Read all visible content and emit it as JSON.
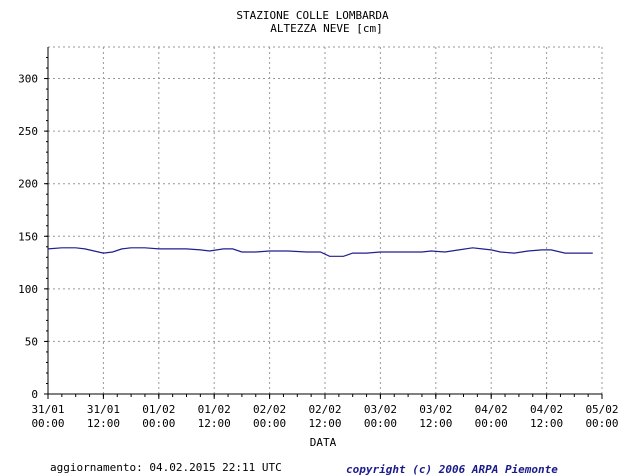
{
  "chart_data": {
    "type": "line",
    "title": "STAZIONE COLLE LOMBARDA",
    "subtitle": "ALTEZZA NEVE [cm]",
    "xlabel": "DATA",
    "ylabel": "",
    "ylim": [
      0,
      330
    ],
    "y_ticks": [
      0,
      50,
      100,
      150,
      200,
      250,
      300
    ],
    "x_ticks": [
      {
        "date": "31/01",
        "time": "00:00"
      },
      {
        "date": "31/01",
        "time": "12:00"
      },
      {
        "date": "01/02",
        "time": "00:00"
      },
      {
        "date": "01/02",
        "time": "12:00"
      },
      {
        "date": "02/02",
        "time": "00:00"
      },
      {
        "date": "02/02",
        "time": "12:00"
      },
      {
        "date": "03/02",
        "time": "00:00"
      },
      {
        "date": "03/02",
        "time": "12:00"
      },
      {
        "date": "04/02",
        "time": "00:00"
      },
      {
        "date": "04/02",
        "time": "12:00"
      },
      {
        "date": "05/02",
        "time": "00:00"
      }
    ],
    "grid": true,
    "line_color": "#1f1f8f",
    "series": [
      {
        "x": [
          "31/01 00:00",
          "31/01 03:00",
          "31/01 06:00",
          "31/01 08:00",
          "31/01 10:00",
          "31/01 12:00",
          "31/01 14:00",
          "31/01 16:00",
          "31/01 18:00",
          "31/01 21:00",
          "01/02 00:00",
          "01/02 03:00",
          "01/02 06:00",
          "01/02 09:00",
          "01/02 11:00",
          "01/02 14:00",
          "01/02 16:00",
          "01/02 18:00",
          "01/02 21:00",
          "02/02 00:00",
          "02/02 04:00",
          "02/02 08:00",
          "02/02 11:00",
          "02/02 13:00",
          "02/02 16:00",
          "02/02 18:00",
          "02/02 21:00",
          "03/02 00:00",
          "03/02 03:00",
          "03/02 06:00",
          "03/02 09:00",
          "03/02 11:00",
          "03/02 14:00",
          "03/02 17:00",
          "03/02 20:00",
          "03/02 22:00",
          "04/02 00:00",
          "04/02 02:00",
          "04/02 05:00",
          "04/02 08:00",
          "04/02 11:00",
          "04/02 13:00",
          "04/02 16:00",
          "04/02 19:00",
          "04/02 22:00"
        ],
        "values": [
          138,
          139,
          139,
          138,
          136,
          134,
          135,
          138,
          139,
          139,
          138,
          138,
          138,
          137,
          136,
          138,
          138,
          135,
          135,
          136,
          136,
          135,
          135,
          131,
          131,
          134,
          134,
          135,
          135,
          135,
          135,
          136,
          135,
          137,
          139,
          138,
          137,
          135,
          134,
          136,
          137,
          137,
          134,
          134,
          134
        ]
      }
    ]
  },
  "footer": {
    "updated": "aggiornamento: 04.02.2015 22:11 UTC",
    "copyright": "copyright (c) 2006 ARPA Piemonte"
  }
}
